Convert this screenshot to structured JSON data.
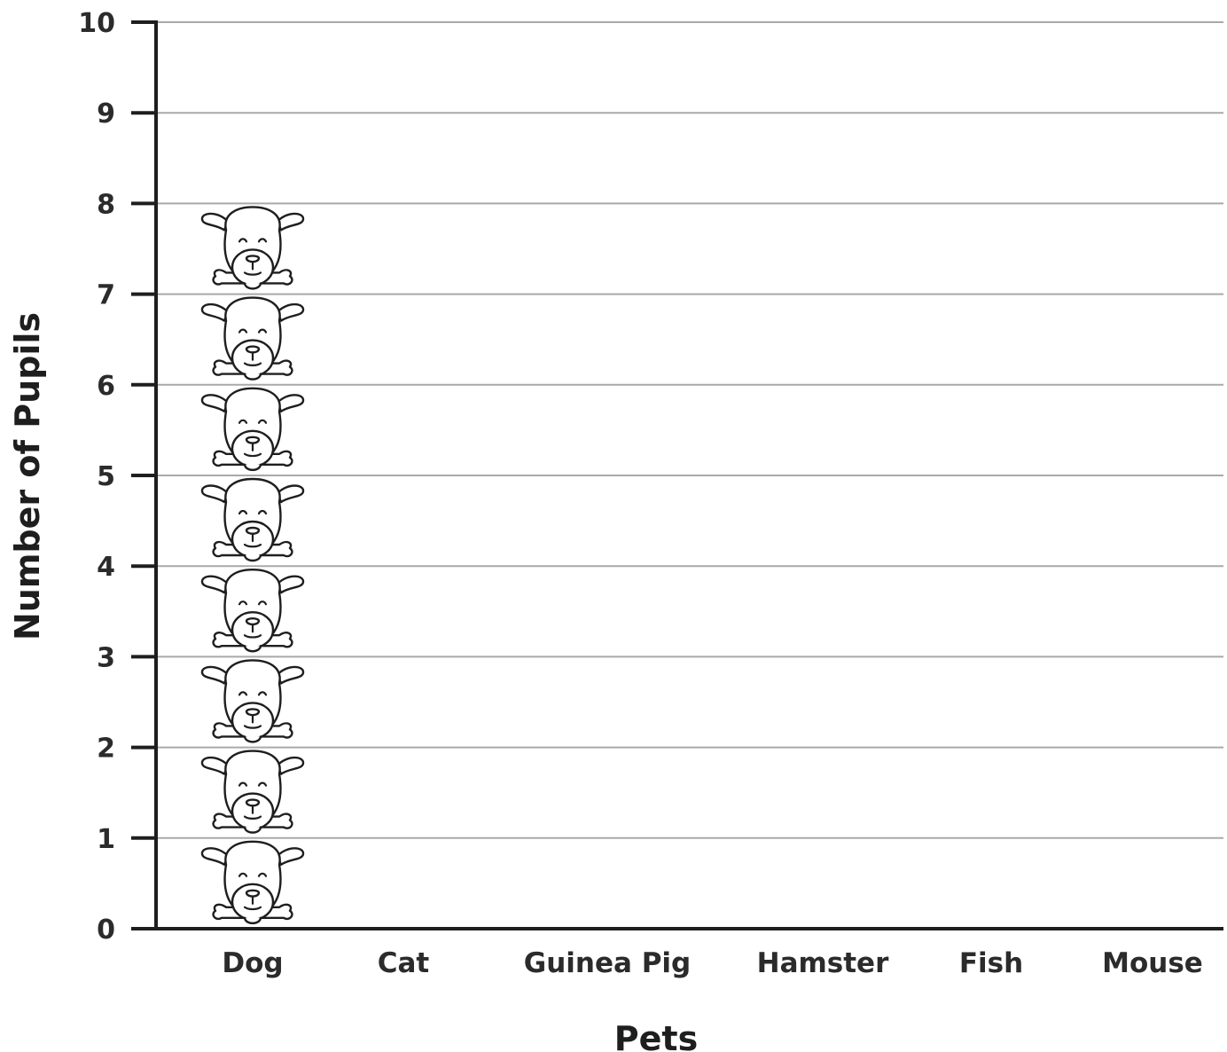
{
  "chart_data": {
    "type": "pictogram",
    "title": "",
    "xlabel": "Pets",
    "ylabel": "Number of Pupils",
    "categories": [
      "Dog",
      "Cat",
      "Guinea Pig",
      "Hamster",
      "Fish",
      "Mouse"
    ],
    "values": [
      8,
      0,
      0,
      0,
      0,
      0
    ],
    "ylim": [
      0,
      10
    ],
    "yticks": [
      "0",
      "1",
      "2",
      "3",
      "4",
      "5",
      "6",
      "7",
      "8",
      "9",
      "10"
    ],
    "grid": true,
    "icon": "dog-face-icon",
    "colors": {
      "axis": "#1e1e1e",
      "grid": "#a9a9a9",
      "text": "#2b2b2b"
    }
  }
}
